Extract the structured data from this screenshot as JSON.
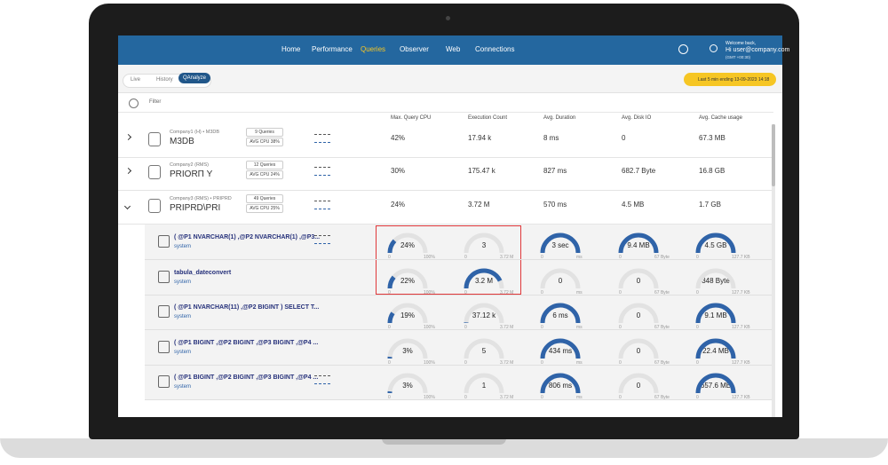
{
  "nav": {
    "items": [
      "Home",
      "Performance",
      "Queries",
      "Observer",
      "Web",
      "Connections"
    ],
    "active": "Queries",
    "user": {
      "greeting": "Welcome back,",
      "name": "Hi user@company.com",
      "timezone": "(GMT +00:30)"
    }
  },
  "tabs": [
    "Live",
    "History",
    "QAnalyze"
  ],
  "active_tab": "QAnalyze",
  "date_range": "Last 5 min ending  13-09-2023 14:18",
  "filter": "Filter",
  "columns": [
    "Max. Query CPU",
    "Execution Count",
    "Avg. Duration",
    "Avg. Disk IO",
    "Avg. Cache usage"
  ],
  "companies": [
    {
      "subtitle": "Company1 (H) • M3DB",
      "name": "M3DB",
      "queries": "9 Queries",
      "avg_cpu": "AVG CPU 38%",
      "cells": [
        "42%",
        "17.94 k",
        "8 ms",
        "0",
        "67.3 MB"
      ]
    },
    {
      "subtitle": "Company2 (RMS)",
      "name": "PRIORП Y",
      "queries": "12 Queries",
      "avg_cpu": "AVG CPU 24%",
      "cells": [
        "30%",
        "175.47 k",
        "827 ms",
        "682.7 Byte",
        "16.8 GB"
      ]
    },
    {
      "subtitle": "Company3 (RMS) • PRIPRD",
      "name": "PRIPRD\\PRI",
      "queries": "49 Queries",
      "avg_cpu": "AVG CPU 25%",
      "cells": [
        "24%",
        "3.72 M",
        "570 ms",
        "4.5 MB",
        "1.7 GB"
      ]
    }
  ],
  "queries": [
    {
      "text": "( @P1 NVARCHAR(1) ,@P2 NVARCHAR(1) ,@P3...",
      "user": "system",
      "gauges": [
        {
          "label": "24%",
          "min": "0",
          "max": "100%",
          "level": 24
        },
        {
          "label": "3",
          "min": "0",
          "max": "3.72 M",
          "level": 0
        },
        {
          "label": "3 sec",
          "min": "0",
          "max": "ms",
          "level": 100
        },
        {
          "label": "9.4 MB",
          "min": "0",
          "max": "67 Byte",
          "level": 100
        },
        {
          "label": "4.5 GB",
          "min": "0",
          "max": "127.7 KB",
          "level": 100
        }
      ]
    },
    {
      "text": "tabula_dateconvert",
      "user": "system",
      "gauges": [
        {
          "label": "22%",
          "min": "0",
          "max": "100%",
          "level": 22
        },
        {
          "label": "3.2 M",
          "min": "0",
          "max": "3.72 M",
          "level": 86
        },
        {
          "label": "0",
          "min": "0",
          "max": "ms",
          "level": 0
        },
        {
          "label": "0",
          "min": "0",
          "max": "67 Byte",
          "level": 0
        },
        {
          "label": "348 Byte",
          "min": "0",
          "max": "127.7 KB",
          "level": 0
        }
      ]
    },
    {
      "text": "( @P1 NVARCHAR(11) ,@P2 BIGINT ) SELECT T...",
      "user": "system",
      "gauges": [
        {
          "label": "19%",
          "min": "0",
          "max": "100%",
          "level": 19
        },
        {
          "label": "37.12 k",
          "min": "0",
          "max": "3.72 M",
          "level": 1
        },
        {
          "label": "6 ms",
          "min": "0",
          "max": "ms",
          "level": 100
        },
        {
          "label": "0",
          "min": "0",
          "max": "67 Byte",
          "level": 0
        },
        {
          "label": "9.1 MB",
          "min": "0",
          "max": "127.7 KB",
          "level": 100
        }
      ]
    },
    {
      "text": "( @P1 BIGINT ,@P2 BIGINT ,@P3 BIGINT ,@P4 ...",
      "user": "system",
      "gauges": [
        {
          "label": "3%",
          "min": "0",
          "max": "100%",
          "level": 3
        },
        {
          "label": "5",
          "min": "0",
          "max": "3.72 M",
          "level": 0
        },
        {
          "label": "434 ms",
          "min": "0",
          "max": "ms",
          "level": 100
        },
        {
          "label": "0",
          "min": "0",
          "max": "67 Byte",
          "level": 0
        },
        {
          "label": "22.4 MB",
          "min": "0",
          "max": "127.7 KB",
          "level": 100
        }
      ]
    },
    {
      "text": "( @P1 BIGINT ,@P2 BIGINT ,@P3 BIGINT ,@P4 ...",
      "user": "system",
      "gauges": [
        {
          "label": "3%",
          "min": "0",
          "max": "100%",
          "level": 3
        },
        {
          "label": "1",
          "min": "0",
          "max": "3.72 M",
          "level": 0
        },
        {
          "label": "806 ms",
          "min": "0",
          "max": "ms",
          "level": 100
        },
        {
          "label": "0",
          "min": "0",
          "max": "67 Byte",
          "level": 0
        },
        {
          "label": "657.6 MB",
          "min": "0",
          "max": "127.7 KB",
          "level": 100
        }
      ]
    }
  ]
}
